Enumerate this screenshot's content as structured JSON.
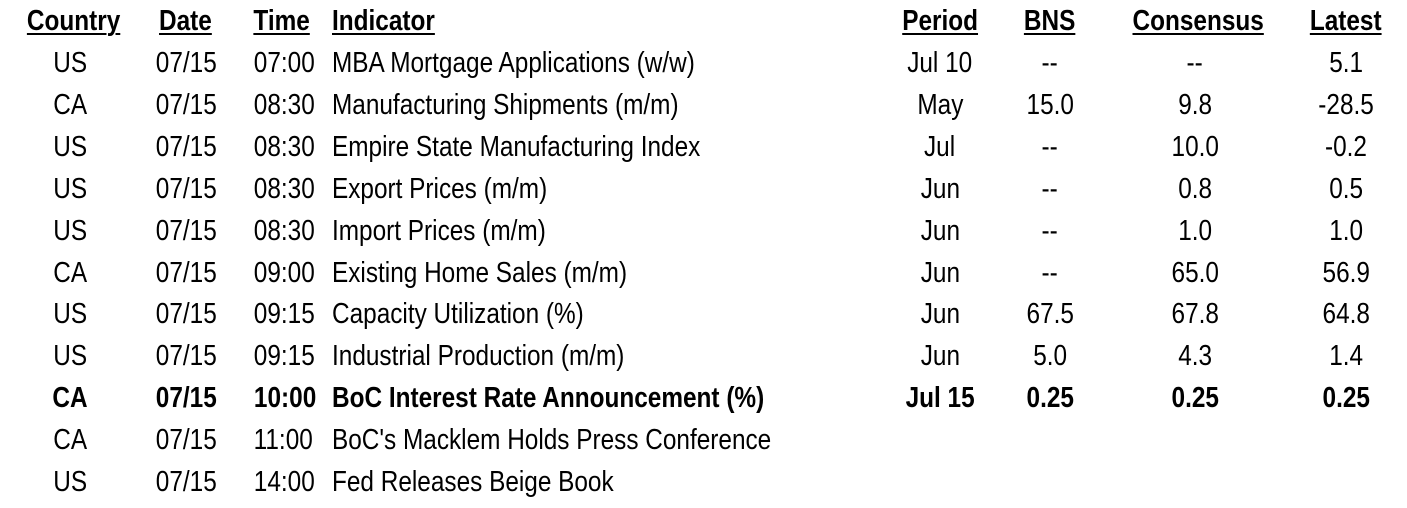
{
  "headers": {
    "country": "Country",
    "date": "Date",
    "time": "Time",
    "indicator": "Indicator",
    "period": "Period",
    "bns": "BNS",
    "consensus": "Consensus",
    "latest": "Latest"
  },
  "rows": [
    {
      "country": "US",
      "date": "07/15",
      "time": "07:00",
      "indicator": "MBA Mortgage Applications (w/w)",
      "period": "Jul 10",
      "bns": "--",
      "consensus": "--",
      "latest": "5.1",
      "bold": false
    },
    {
      "country": "CA",
      "date": "07/15",
      "time": "08:30",
      "indicator": "Manufacturing Shipments (m/m)",
      "period": "May",
      "bns": "15.0",
      "consensus": "9.8",
      "latest": "-28.5",
      "bold": false
    },
    {
      "country": "US",
      "date": "07/15",
      "time": "08:30",
      "indicator": "Empire State Manufacturing Index",
      "period": "Jul",
      "bns": "--",
      "consensus": "10.0",
      "latest": "-0.2",
      "bold": false
    },
    {
      "country": "US",
      "date": "07/15",
      "time": "08:30",
      "indicator": "Export Prices (m/m)",
      "period": "Jun",
      "bns": "--",
      "consensus": "0.8",
      "latest": "0.5",
      "bold": false
    },
    {
      "country": "US",
      "date": "07/15",
      "time": "08:30",
      "indicator": "Import Prices (m/m)",
      "period": "Jun",
      "bns": "--",
      "consensus": "1.0",
      "latest": "1.0",
      "bold": false
    },
    {
      "country": "CA",
      "date": "07/15",
      "time": "09:00",
      "indicator": "Existing Home Sales (m/m)",
      "period": "Jun",
      "bns": "--",
      "consensus": "65.0",
      "latest": "56.9",
      "bold": false
    },
    {
      "country": "US",
      "date": "07/15",
      "time": "09:15",
      "indicator": "Capacity Utilization (%)",
      "period": "Jun",
      "bns": "67.5",
      "consensus": "67.8",
      "latest": "64.8",
      "bold": false
    },
    {
      "country": "US",
      "date": "07/15",
      "time": "09:15",
      "indicator": "Industrial Production (m/m)",
      "period": "Jun",
      "bns": "5.0",
      "consensus": "4.3",
      "latest": "1.4",
      "bold": false
    },
    {
      "country": "CA",
      "date": "07/15",
      "time": "10:00",
      "indicator": "BoC Interest Rate Announcement (%)",
      "period": "Jul 15",
      "bns": "0.25",
      "consensus": "0.25",
      "latest": "0.25",
      "bold": true
    },
    {
      "country": "CA",
      "date": "07/15",
      "time": "11:00",
      "indicator": "BoC's Macklem Holds Press Conference",
      "period": "",
      "bns": "",
      "consensus": "",
      "latest": "",
      "bold": false
    },
    {
      "country": "US",
      "date": "07/15",
      "time": "14:00",
      "indicator": "Fed Releases Beige Book",
      "period": "",
      "bns": "",
      "consensus": "",
      "latest": "",
      "bold": false
    }
  ]
}
